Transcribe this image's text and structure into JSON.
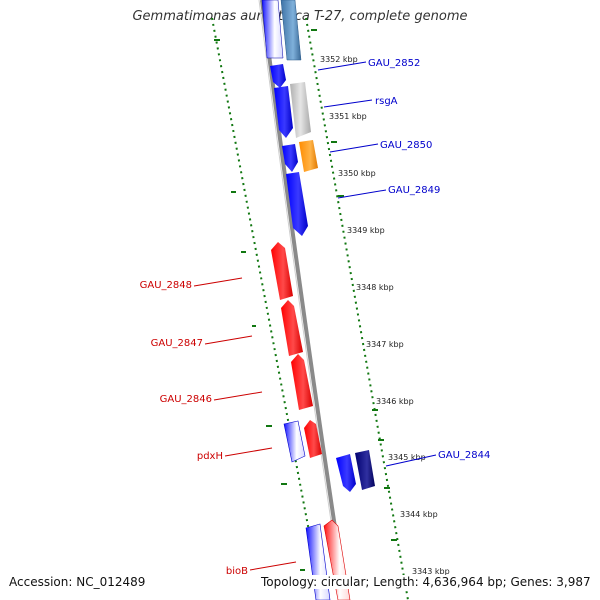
{
  "title": "Gemmatimonas aurantiaca T-27, complete genome",
  "footer": {
    "accession": "Accession: NC_012489",
    "topology": "Topology: circular; Length: 4,636,964 bp; Genes: 3,987"
  },
  "colors": {
    "forward_strand": "#0000ff",
    "reverse_strand": "#ff0000",
    "rna": "#9e9e9e",
    "highlight_orange": "#ff8c00",
    "dark_blue": "#00007a",
    "steel_blue": "#4b86b8",
    "axis": "#7f7f7f",
    "gc_dots": "#117711",
    "forward_label": "#0000cc",
    "reverse_label": "#cc0000"
  },
  "scale": {
    "unit": "kbp",
    "ticks": [
      3352,
      3351,
      3350,
      3349,
      3348,
      3347,
      3346,
      3345,
      3344,
      3343
    ]
  },
  "genes": [
    {
      "name": "GAU_2852",
      "strand": "forward",
      "color": "steel_blue",
      "label_side": "right",
      "labeled": true
    },
    {
      "name": "rsgA",
      "strand": "forward",
      "color": "rna",
      "label_side": "right",
      "labeled": true
    },
    {
      "name": "GAU_2850",
      "strand": "forward",
      "color": "highlight_orange",
      "label_side": "right",
      "labeled": true
    },
    {
      "name": "GAU_2849",
      "strand": "forward",
      "color": "forward_strand",
      "label_side": "right",
      "labeled": true
    },
    {
      "name": "GAU_2848",
      "strand": "reverse",
      "color": "reverse_strand",
      "label_side": "left",
      "labeled": true
    },
    {
      "name": "GAU_2847",
      "strand": "reverse",
      "color": "reverse_strand",
      "label_side": "left",
      "labeled": true
    },
    {
      "name": "GAU_2846",
      "strand": "reverse",
      "color": "reverse_strand",
      "label_side": "left",
      "labeled": true
    },
    {
      "name": "pdxH",
      "strand": "reverse",
      "color": "reverse_strand",
      "label_side": "left",
      "labeled": true
    },
    {
      "name": "GAU_2844",
      "strand": "forward",
      "color": "dark_blue",
      "label_side": "right",
      "labeled": true
    },
    {
      "name": "bioB",
      "strand": "reverse",
      "color": "reverse_strand",
      "label_side": "left",
      "labeled": true
    }
  ]
}
